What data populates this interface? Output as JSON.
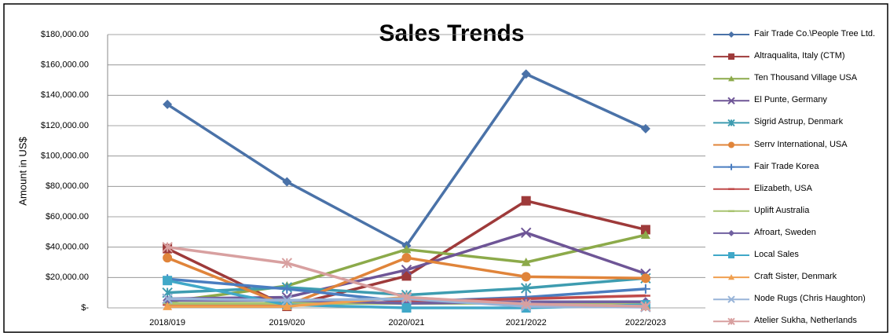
{
  "chart_data": {
    "type": "line",
    "title": "Sales Trends",
    "y_label": "Amount  in US$",
    "categories": [
      "2018/019",
      "2019/020",
      "2020/021",
      "2021/2022",
      "2022/2023"
    ],
    "ylim": [
      0,
      180000
    ],
    "yticks": [
      {
        "value": 0,
        "label": "$-"
      },
      {
        "value": 20000,
        "label": "$20,000.00"
      },
      {
        "value": 40000,
        "label": "$40,000.00"
      },
      {
        "value": 60000,
        "label": "$60,000.00"
      },
      {
        "value": 80000,
        "label": "$80,000.00"
      },
      {
        "value": 100000,
        "label": "$100,000.00"
      },
      {
        "value": 120000,
        "label": "$120,000.00"
      },
      {
        "value": 140000,
        "label": "$140,000.00"
      },
      {
        "value": 160000,
        "label": "$160,000.00"
      },
      {
        "value": 180000,
        "label": "$180,000.00"
      }
    ],
    "grid": true,
    "legend": "right",
    "series": [
      {
        "name": "Fair Trade Co.\\People Tree Ltd.",
        "color": "#4a72a8",
        "marker": "diamond",
        "values": [
          134000,
          83000,
          41000,
          154000,
          118000
        ]
      },
      {
        "name": "Altraqualita, Italy (CTM)",
        "color": "#9e3a3a",
        "marker": "square",
        "values": [
          39000,
          1000,
          21000,
          70500,
          51500
        ]
      },
      {
        "name": "Ten Thousand Village USA",
        "color": "#8caa4a",
        "marker": "triangle",
        "values": [
          4000,
          14500,
          38500,
          30000,
          48000
        ]
      },
      {
        "name": "El Punte, Germany",
        "color": "#6e5596",
        "marker": "x",
        "values": [
          6000,
          7000,
          25000,
          49500,
          22500
        ]
      },
      {
        "name": "Sigrid Astrup, Denmark",
        "color": "#3e9cb0",
        "marker": "star",
        "values": [
          10000,
          13500,
          8500,
          13000,
          19500
        ]
      },
      {
        "name": "Serrv International, USA",
        "color": "#e0843a",
        "marker": "circle",
        "values": [
          33000,
          1500,
          33000,
          20500,
          19500
        ]
      },
      {
        "name": "Fair Trade Korea",
        "color": "#4a7dc0",
        "marker": "plus",
        "values": [
          19000,
          12500,
          4000,
          7000,
          12500
        ]
      },
      {
        "name": "Elizabeth, USA",
        "color": "#c04a4a",
        "marker": "dash",
        "values": [
          2000,
          2000,
          4000,
          6000,
          8000
        ]
      },
      {
        "name": "Uplift Australia",
        "color": "#a8c470",
        "marker": "dash",
        "values": [
          3000,
          3000,
          3000,
          3000,
          3000
        ]
      },
      {
        "name": "Afroart, Sweden",
        "color": "#7060a0",
        "marker": "diamond",
        "values": [
          5000,
          5000,
          3000,
          4000,
          4000
        ]
      },
      {
        "name": "Local Sales",
        "color": "#40a8c8",
        "marker": "square",
        "values": [
          18000,
          2000,
          0,
          0,
          2000
        ]
      },
      {
        "name": "Craft Sister, Denmark",
        "color": "#f0a050",
        "marker": "triangle",
        "values": [
          1000,
          1000,
          7000,
          2000,
          1000
        ]
      },
      {
        "name": "Node Rugs (Chris Haughton)",
        "color": "#98b4d8",
        "marker": "x",
        "values": [
          6000,
          5000,
          6000,
          1000,
          500
        ]
      },
      {
        "name": "Atelier Sukha, Netherlands",
        "color": "#d8a0a0",
        "marker": "star",
        "values": [
          40000,
          29500,
          7000,
          2500,
          1000
        ]
      }
    ]
  }
}
